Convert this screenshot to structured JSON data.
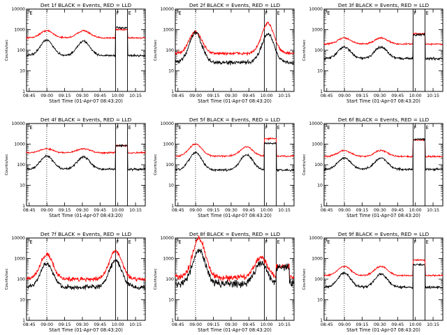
{
  "chart_data": [
    {
      "type": "line",
      "title": "Det 1f BLACK = Events, RED = LLD",
      "xlabel": "Start Time (01-Apr-07 08:43:20)",
      "ylabel": "Counts/sec",
      "xticks": [
        "08:45",
        "09:00",
        "09:15",
        "09:30",
        "09:45",
        "10:00",
        "10:15"
      ],
      "yticks": [
        "1",
        "10",
        "100",
        "1000",
        "10000"
      ],
      "ylim": [
        1,
        10000
      ],
      "xlim_min": [
        0,
        100
      ],
      "markers": [
        {
          "label": "E",
          "x": 2
        },
        {
          "label": "F",
          "x": 75
        },
        {
          "label": "E",
          "x": 85
        }
      ],
      "dotted_x": [
        17
      ],
      "series": [
        {
          "name": "LLD",
          "color": "#ff0000",
          "base": 400,
          "peaks": [
            {
              "x": 17,
              "a": 0.35
            },
            {
              "x": 48,
              "a": 0.35
            }
          ],
          "box": {
            "from": 75,
            "to": 85,
            "a": 0.4
          },
          "noise": 0.03
        },
        {
          "name": "Events",
          "color": "#000000",
          "base": 55,
          "peaks": [
            {
              "x": 17,
              "a": 0.75
            },
            {
              "x": 48,
              "a": 0.7
            }
          ],
          "box": {
            "from": 75,
            "to": 85,
            "a": 1.35
          },
          "noise": 0.04
        }
      ]
    },
    {
      "type": "line",
      "title": "Det 2f BLACK = Events, RED = LLD",
      "xlabel": "Start Time (01-Apr-07 08:43:20)",
      "ylabel": "Counts/sec",
      "xticks": [
        "08:45",
        "09:00",
        "09:15",
        "09:30",
        "09:45",
        "10:00",
        "10:15"
      ],
      "yticks": [
        "1",
        "10",
        "100",
        "1000",
        "10000"
      ],
      "ylim": [
        1,
        10000
      ],
      "xlim_min": [
        0,
        100
      ],
      "markers": [
        {
          "label": "E",
          "x": 2
        },
        {
          "label": "F",
          "x": 75
        },
        {
          "label": "E",
          "x": 85
        }
      ],
      "dotted_x": [
        17
      ],
      "series": [
        {
          "name": "LLD",
          "color": "#ff0000",
          "base": 70,
          "peaks": [
            {
              "x": 17,
              "a": 1.05
            },
            {
              "x": 78,
              "a": 1.45
            }
          ],
          "box": null,
          "noise": 0.06
        },
        {
          "name": "Events",
          "color": "#000000",
          "base": 25,
          "peaks": [
            {
              "x": 17,
              "a": 1.45
            },
            {
              "x": 78,
              "a": 1.4
            }
          ],
          "box": null,
          "noise": 0.08
        }
      ]
    },
    {
      "type": "line",
      "title": "Det 3f BLACK = Events, RED = LLD",
      "xlabel": "Start Time (01-Apr-07 08:43:20)",
      "ylabel": "Counts/sec",
      "xticks": [
        "08:45",
        "09:00",
        "09:15",
        "09:30",
        "09:45",
        "10:00",
        "10:15"
      ],
      "yticks": [
        "1",
        "10",
        "100",
        "1000",
        "10000"
      ],
      "ylim": [
        1,
        10000
      ],
      "xlim_min": [
        0,
        100
      ],
      "markers": [
        {
          "label": "E",
          "x": 2
        },
        {
          "label": "F",
          "x": 75
        },
        {
          "label": "E",
          "x": 85
        }
      ],
      "dotted_x": [
        17
      ],
      "series": [
        {
          "name": "LLD",
          "color": "#ff0000",
          "base": 200,
          "peaks": [
            {
              "x": 17,
              "a": 0.3
            },
            {
              "x": 48,
              "a": 0.3
            }
          ],
          "box": {
            "from": 75,
            "to": 85,
            "a": 0.5
          },
          "noise": 0.03
        },
        {
          "name": "Events",
          "color": "#000000",
          "base": 40,
          "peaks": [
            {
              "x": 17,
              "a": 0.55
            },
            {
              "x": 48,
              "a": 0.55
            }
          ],
          "box": {
            "from": 75,
            "to": 85,
            "a": 1.15
          },
          "noise": 0.05
        }
      ]
    },
    {
      "type": "line",
      "title": "Det 4f BLACK = Events, RED = LLD",
      "xlabel": "Start Time (01-Apr-07 08:43:20)",
      "ylabel": "Counts/sec",
      "xticks": [
        "08:45",
        "09:00",
        "09:15",
        "09:30",
        "09:45",
        "10:00",
        "10:15"
      ],
      "yticks": [
        "1",
        "10",
        "100",
        "1000",
        "10000"
      ],
      "ylim": [
        1,
        10000
      ],
      "xlim_min": [
        0,
        100
      ],
      "markers": [
        {
          "label": "E",
          "x": 2
        },
        {
          "label": "F",
          "x": 75
        },
        {
          "label": "E",
          "x": 85
        }
      ],
      "dotted_x": [
        17
      ],
      "series": [
        {
          "name": "LLD",
          "color": "#ff0000",
          "base": 380,
          "peaks": [
            {
              "x": 17,
              "a": 0.2
            },
            {
              "x": 48,
              "a": 0.2
            }
          ],
          "box": {
            "from": 75,
            "to": 85,
            "a": 0.35
          },
          "noise": 0.03
        },
        {
          "name": "Events",
          "color": "#000000",
          "base": 60,
          "peaks": [
            {
              "x": 17,
              "a": 0.65
            },
            {
              "x": 48,
              "a": 0.6
            }
          ],
          "box": {
            "from": 75,
            "to": 85,
            "a": 1.15
          },
          "noise": 0.04
        }
      ]
    },
    {
      "type": "line",
      "title": "Det 5f BLACK = Events, RED = LLD",
      "xlabel": "Start Time (01-Apr-07 08:43:20)",
      "ylabel": "Counts/sec",
      "xticks": [
        "08:45",
        "09:00",
        "09:15",
        "09:30",
        "09:45",
        "10:00",
        "10:15"
      ],
      "yticks": [
        "1",
        "10",
        "100",
        "1000",
        "10000"
      ],
      "ylim": [
        1,
        10000
      ],
      "xlim_min": [
        0,
        100
      ],
      "markers": [
        {
          "label": "E",
          "x": 2
        },
        {
          "label": "F",
          "x": 75
        },
        {
          "label": "E",
          "x": 85
        }
      ],
      "dotted_x": [
        17
      ],
      "series": [
        {
          "name": "LLD",
          "color": "#ff0000",
          "base": 260,
          "peaks": [
            {
              "x": 17,
              "a": 0.6
            },
            {
              "x": 60,
              "a": 0.45
            }
          ],
          "box": {
            "from": 75,
            "to": 85,
            "a": 0.85
          },
          "noise": 0.03
        },
        {
          "name": "Events",
          "color": "#000000",
          "base": 55,
          "peaks": [
            {
              "x": 17,
              "a": 0.85
            },
            {
              "x": 60,
              "a": 0.75
            }
          ],
          "box": {
            "from": 75,
            "to": 85,
            "a": 1.3
          },
          "noise": 0.04
        }
      ]
    },
    {
      "type": "line",
      "title": "Det 6f BLACK = Events, RED = LLD",
      "xlabel": "Start Time (01-Apr-07 08:43:20)",
      "ylabel": "Counts/sec",
      "xticks": [
        "08:45",
        "09:00",
        "09:15",
        "09:30",
        "09:45",
        "10:00",
        "10:15"
      ],
      "yticks": [
        "1",
        "10",
        "100",
        "1000",
        "10000"
      ],
      "ylim": [
        1,
        10000
      ],
      "xlim_min": [
        0,
        100
      ],
      "markers": [
        {
          "label": "E",
          "x": 2
        },
        {
          "label": "F",
          "x": 75
        },
        {
          "label": "E",
          "x": 85
        }
      ],
      "dotted_x": [
        17
      ],
      "series": [
        {
          "name": "LLD",
          "color": "#ff0000",
          "base": 250,
          "peaks": [
            {
              "x": 17,
              "a": 0.3
            },
            {
              "x": 48,
              "a": 0.3
            }
          ],
          "box": {
            "from": 75,
            "to": 85,
            "a": 0.8
          },
          "noise": 0.03
        },
        {
          "name": "Events",
          "color": "#000000",
          "base": 60,
          "peaks": [
            {
              "x": 17,
              "a": 0.55
            },
            {
              "x": 48,
              "a": 0.55
            }
          ],
          "box": {
            "from": 75,
            "to": 85,
            "a": 1.45
          },
          "noise": 0.04
        }
      ]
    },
    {
      "type": "line",
      "title": "Det 7f BLACK = Events, RED = LLD",
      "xlabel": "Start Time (01-Apr-07 08:43:20)",
      "ylabel": "Counts/sec",
      "xticks": [
        "08:45",
        "09:00",
        "09:15",
        "09:30",
        "09:45",
        "10:00",
        "10:15"
      ],
      "yticks": [
        "1",
        "10",
        "100",
        "1000",
        "10000"
      ],
      "ylim": [
        1,
        10000
      ],
      "xlim_min": [
        0,
        100
      ],
      "markers": [
        {
          "label": "E",
          "x": 2
        },
        {
          "label": "F",
          "x": 75
        },
        {
          "label": "E",
          "x": 85
        }
      ],
      "dotted_x": [
        17
      ],
      "series": [
        {
          "name": "LLD",
          "color": "#ff0000",
          "base": 100,
          "peaks": [
            {
              "x": 17,
              "a": 1.2
            },
            {
              "x": 75,
              "a": 1.4
            }
          ],
          "box": null,
          "noise": 0.09
        },
        {
          "name": "Events",
          "color": "#000000",
          "base": 40,
          "peaks": [
            {
              "x": 17,
              "a": 1.15
            },
            {
              "x": 75,
              "a": 1.3
            }
          ],
          "box": null,
          "noise": 0.09
        }
      ]
    },
    {
      "type": "line",
      "title": "Det 8f BLACK = Events, RED = LLD",
      "xlabel": "Start Time (01-Apr-07 08:43:20)",
      "ylabel": "Counts/sec",
      "xticks": [
        "08:45",
        "09:00",
        "09:15",
        "09:30",
        "09:45",
        "10:00",
        "10:15"
      ],
      "yticks": [
        "1",
        "10",
        "100",
        "1000",
        "10000"
      ],
      "ylim": [
        1,
        10000
      ],
      "xlim_min": [
        0,
        100
      ],
      "markers": [
        {
          "label": "E",
          "x": 2
        },
        {
          "label": "F",
          "x": 75
        },
        {
          "label": "E",
          "x": 85
        }
      ],
      "dotted_x": [
        17
      ],
      "series": [
        {
          "name": "LLD",
          "color": "#ff0000",
          "base": 120,
          "peaks": [
            {
              "x": 20,
              "a": 1.9
            },
            {
              "x": 72,
              "a": 1.0
            }
          ],
          "box": {
            "from": 85,
            "to": 96,
            "a": 0.55
          },
          "noise": 0.12
        },
        {
          "name": "Events",
          "color": "#000000",
          "base": 60,
          "peaks": [
            {
              "x": 20,
              "a": 1.6
            },
            {
              "x": 72,
              "a": 1.0
            }
          ],
          "box": {
            "from": 85,
            "to": 96,
            "a": 0.8
          },
          "noise": 0.14
        }
      ]
    },
    {
      "type": "line",
      "title": "Det 9f BLACK = Events, RED = LLD",
      "xlabel": "Start Time (01-Apr-07 08:43:20)",
      "ylabel": "Counts/sec",
      "xticks": [
        "08:45",
        "09:00",
        "09:15",
        "09:30",
        "09:45",
        "10:00",
        "10:15"
      ],
      "yticks": [
        "1",
        "10",
        "100",
        "1000",
        "10000"
      ],
      "ylim": [
        1,
        10000
      ],
      "xlim_min": [
        0,
        100
      ],
      "markers": [
        {
          "label": "E",
          "x": 2
        },
        {
          "label": "F",
          "x": 75
        },
        {
          "label": "E",
          "x": 85
        }
      ],
      "dotted_x": [
        17
      ],
      "series": [
        {
          "name": "LLD",
          "color": "#ff0000",
          "base": 150,
          "peaks": [
            {
              "x": 17,
              "a": 0.45
            },
            {
              "x": 48,
              "a": 0.45
            }
          ],
          "box": {
            "from": 75,
            "to": 85,
            "a": 0.75
          },
          "noise": 0.03
        },
        {
          "name": "Events",
          "color": "#000000",
          "base": 40,
          "peaks": [
            {
              "x": 17,
              "a": 0.7
            },
            {
              "x": 48,
              "a": 0.65
            }
          ],
          "box": {
            "from": 75,
            "to": 85,
            "a": 1.1
          },
          "noise": 0.05
        }
      ]
    }
  ]
}
